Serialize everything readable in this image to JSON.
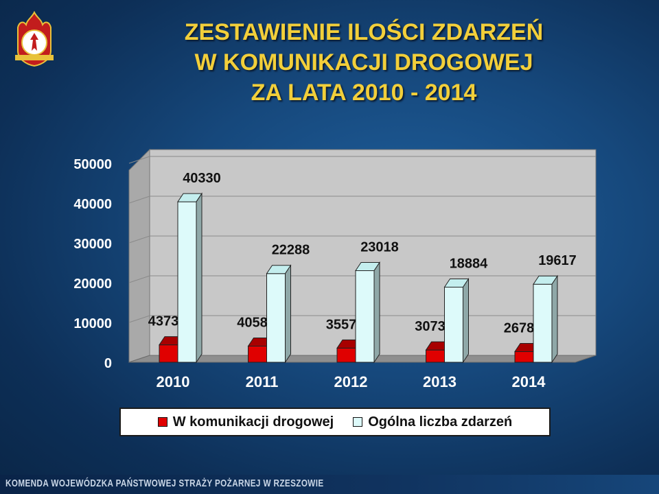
{
  "slide": {
    "title_lines": [
      "ZESTAWIENIE ILOŚCI ZDARZEŃ",
      "W KOMUNIKACJI DROGOWEJ",
      "ZA LATA 2010 - 2014"
    ],
    "logo_text": "PAŃSTWOWA STRAŻ POŻARNA",
    "footer": "KOMENDA WOJEWÓDZKA PAŃSTWOWEJ STRAŻY POŻARNEJ W RZESZOWIE",
    "colors": {
      "title": "#f2cf3a",
      "background": "#16487c",
      "road_series": "#e00000",
      "total_series": "#ddfafa"
    }
  },
  "chart_data": {
    "type": "bar",
    "style": "3d-column",
    "categories": [
      "2010",
      "2011",
      "2012",
      "2013",
      "2014"
    ],
    "series": [
      {
        "name": "W komunikacji drogowej",
        "values": [
          4373,
          4058,
          3557,
          3073,
          2678
        ],
        "color": "#e00000"
      },
      {
        "name": "Ogólna liczba zdarzeń",
        "values": [
          40330,
          22288,
          23018,
          18884,
          19617
        ],
        "color": "#ddfafa"
      }
    ],
    "y_ticks": [
      "0",
      "10000",
      "20000",
      "30000",
      "40000",
      "50000"
    ],
    "ylim": [
      0,
      50000
    ],
    "grid": true,
    "legend_position": "bottom"
  }
}
